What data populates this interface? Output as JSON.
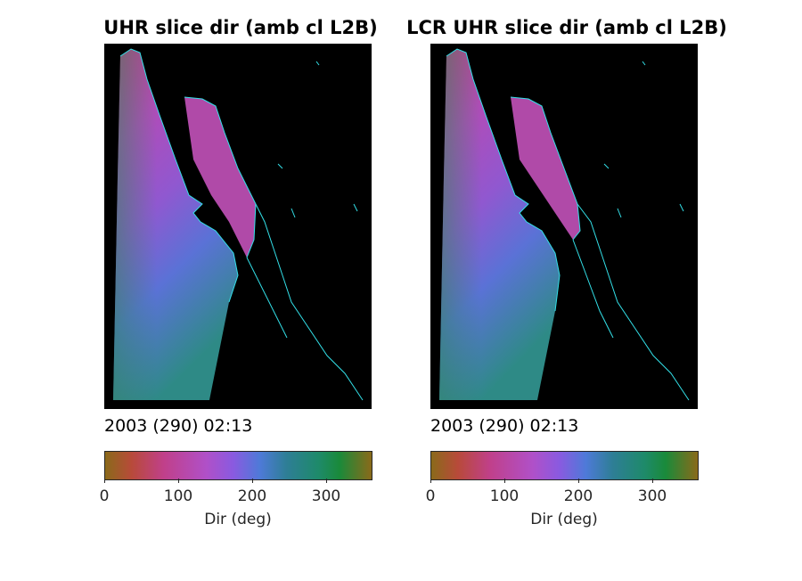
{
  "panels": [
    {
      "title": "UHR slice dir (amb cl L2B)",
      "timestamp": "2003 (290) 02:13",
      "colorbar": {
        "label": "Dir (deg)",
        "ticks": [
          "0",
          "100",
          "200",
          "300"
        ],
        "range": [
          0,
          360
        ]
      }
    },
    {
      "title": "LCR UHR slice dir (amb cl L2B)",
      "timestamp": "2003 (290) 02:13",
      "colorbar": {
        "label": "Dir (deg)",
        "ticks": [
          "0",
          "100",
          "200",
          "300"
        ],
        "range": [
          0,
          360
        ]
      }
    }
  ],
  "colors": {
    "background": "#000000",
    "coastline": "#33e0e8",
    "colormap": [
      "#8a6a1a",
      "#b84a3a",
      "#c0408a",
      "#b050c8",
      "#8a5ae0",
      "#4e7ad8",
      "#2e7e96",
      "#1e8a6a",
      "#1a8a3a",
      "#8a6a1a"
    ]
  }
}
